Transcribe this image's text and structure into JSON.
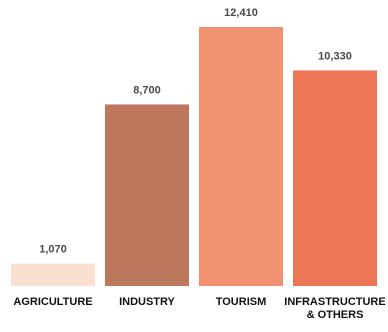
{
  "chart_data": {
    "type": "bar",
    "categories": [
      "AGRICULTURE",
      "INDUSTRY",
      "TOURISM",
      "INFRASTRUCTURE & OTHERS"
    ],
    "category_label_lines": [
      [
        "AGRICULTURE"
      ],
      [
        "INDUSTRY"
      ],
      [
        "TOURISM"
      ],
      [
        "INFRASTRUCTURE",
        "& OTHERS"
      ]
    ],
    "values": [
      1070,
      8700,
      12410,
      10330
    ],
    "value_labels": [
      "1,070",
      "8,700",
      "12,410",
      "10,330"
    ],
    "colors": [
      "#fbe0d2",
      "#bd775d",
      "#f0916f",
      "#ec7655"
    ],
    "ylim": [
      0,
      12410
    ],
    "grid": false,
    "legend": "none",
    "title": "",
    "xlabel": "",
    "ylabel": ""
  }
}
